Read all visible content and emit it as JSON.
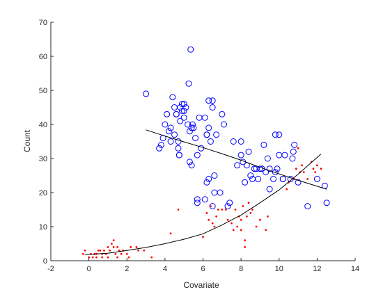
{
  "chart_data": {
    "type": "scatter",
    "title": "",
    "xlabel": "Covariate",
    "ylabel": "Count",
    "xlim": [
      -2,
      14
    ],
    "ylim": [
      0,
      70
    ],
    "xticks": [
      -2,
      0,
      2,
      4,
      6,
      8,
      10,
      12,
      14
    ],
    "yticks": [
      0,
      10,
      20,
      30,
      40,
      50,
      60,
      70
    ],
    "grid": false,
    "legend": "none",
    "series": [
      {
        "marker": "open-circle",
        "color": "#0000ff",
        "points": [
          [
            3.0,
            49
          ],
          [
            3.7,
            33
          ],
          [
            3.8,
            34
          ],
          [
            3.9,
            36
          ],
          [
            4.0,
            40
          ],
          [
            4.1,
            43
          ],
          [
            4.2,
            38
          ],
          [
            4.3,
            39
          ],
          [
            4.3,
            35
          ],
          [
            4.4,
            48
          ],
          [
            4.5,
            45
          ],
          [
            4.5,
            37
          ],
          [
            4.6,
            43
          ],
          [
            4.6,
            43
          ],
          [
            4.7,
            35
          ],
          [
            4.7,
            33
          ],
          [
            4.75,
            31
          ],
          [
            4.75,
            31
          ],
          [
            4.8,
            45
          ],
          [
            4.8,
            41
          ],
          [
            4.9,
            46
          ],
          [
            4.9,
            44
          ],
          [
            5.0,
            46
          ],
          [
            5.0,
            42
          ],
          [
            5.0,
            44
          ],
          [
            5.1,
            45
          ],
          [
            5.2,
            40
          ],
          [
            5.25,
            52
          ],
          [
            5.3,
            38
          ],
          [
            5.3,
            29
          ],
          [
            5.35,
            62
          ],
          [
            5.4,
            28
          ],
          [
            5.4,
            39
          ],
          [
            5.45,
            40
          ],
          [
            5.5,
            39
          ],
          [
            5.6,
            36
          ],
          [
            5.7,
            17
          ],
          [
            5.7,
            18
          ],
          [
            5.7,
            31
          ],
          [
            5.8,
            42
          ],
          [
            5.9,
            33
          ],
          [
            6.1,
            18
          ],
          [
            6.1,
            42
          ],
          [
            6.2,
            23
          ],
          [
            6.2,
            37
          ],
          [
            6.2,
            37
          ],
          [
            6.3,
            47
          ],
          [
            6.3,
            24
          ],
          [
            6.3,
            39
          ],
          [
            6.4,
            35
          ],
          [
            6.5,
            47
          ],
          [
            6.5,
            45
          ],
          [
            6.5,
            16
          ],
          [
            6.6,
            20
          ],
          [
            6.6,
            25
          ],
          [
            6.7,
            37
          ],
          [
            6.9,
            20
          ],
          [
            7.0,
            43
          ],
          [
            7.1,
            40
          ],
          [
            7.3,
            16
          ],
          [
            7.4,
            17
          ],
          [
            7.6,
            35
          ],
          [
            7.8,
            28
          ],
          [
            8.0,
            35
          ],
          [
            8.0,
            31
          ],
          [
            8.1,
            29
          ],
          [
            8.2,
            23
          ],
          [
            8.3,
            28
          ],
          [
            8.4,
            32
          ],
          [
            8.5,
            25
          ],
          [
            8.6,
            24
          ],
          [
            8.7,
            27
          ],
          [
            8.8,
            27
          ],
          [
            8.9,
            24
          ],
          [
            9.0,
            27
          ],
          [
            9.1,
            27
          ],
          [
            9.2,
            34
          ],
          [
            9.3,
            26
          ],
          [
            9.4,
            30
          ],
          [
            9.5,
            27
          ],
          [
            9.5,
            21
          ],
          [
            9.7,
            24
          ],
          [
            9.8,
            26
          ],
          [
            9.8,
            37
          ],
          [
            9.9,
            27
          ],
          [
            10.0,
            37
          ],
          [
            10.0,
            31
          ],
          [
            10.2,
            24
          ],
          [
            10.2,
            24
          ],
          [
            10.3,
            31
          ],
          [
            10.6,
            24
          ],
          [
            10.7,
            30
          ],
          [
            10.75,
            32
          ],
          [
            10.8,
            34
          ],
          [
            11.0,
            23
          ],
          [
            11.5,
            16
          ],
          [
            12.0,
            24
          ],
          [
            12.4,
            22
          ],
          [
            12.5,
            17
          ]
        ]
      },
      {
        "marker": "dot",
        "color": "#ff0000",
        "points": [
          [
            -0.3,
            2
          ],
          [
            -0.2,
            3
          ],
          [
            0.0,
            1
          ],
          [
            0.1,
            2
          ],
          [
            0.2,
            1
          ],
          [
            0.3,
            2
          ],
          [
            0.4,
            1
          ],
          [
            0.4,
            2
          ],
          [
            0.5,
            3
          ],
          [
            0.6,
            3
          ],
          [
            0.7,
            2
          ],
          [
            0.7,
            1
          ],
          [
            0.8,
            3
          ],
          [
            0.9,
            2
          ],
          [
            1.0,
            4
          ],
          [
            1.0,
            1
          ],
          [
            1.1,
            3
          ],
          [
            1.2,
            5
          ],
          [
            1.3,
            6
          ],
          [
            1.3,
            4
          ],
          [
            1.4,
            2
          ],
          [
            1.5,
            4
          ],
          [
            1.5,
            1
          ],
          [
            1.6,
            3
          ],
          [
            1.7,
            2
          ],
          [
            1.8,
            3
          ],
          [
            2.0,
            2
          ],
          [
            2.1,
            1
          ],
          [
            2.2,
            4
          ],
          [
            2.5,
            4
          ],
          [
            2.6,
            3
          ],
          [
            2.9,
            3
          ],
          [
            3.3,
            1
          ],
          [
            4.3,
            8
          ],
          [
            4.7,
            15
          ],
          [
            6.0,
            7
          ],
          [
            6.2,
            14
          ],
          [
            6.3,
            12
          ],
          [
            6.4,
            16
          ],
          [
            6.5,
            11
          ],
          [
            6.6,
            10
          ],
          [
            6.7,
            13
          ],
          [
            6.8,
            15
          ],
          [
            7.0,
            15
          ],
          [
            7.2,
            15
          ],
          [
            7.3,
            12
          ],
          [
            7.5,
            11
          ],
          [
            7.6,
            9
          ],
          [
            7.7,
            15
          ],
          [
            7.8,
            10
          ],
          [
            7.9,
            13
          ],
          [
            8.0,
            9
          ],
          [
            8.0,
            12
          ],
          [
            8.1,
            16
          ],
          [
            8.2,
            6
          ],
          [
            8.2,
            4
          ],
          [
            8.3,
            13
          ],
          [
            8.4,
            17
          ],
          [
            8.5,
            14
          ],
          [
            8.6,
            15
          ],
          [
            8.8,
            10
          ],
          [
            9.0,
            12
          ],
          [
            9.3,
            9
          ],
          [
            9.4,
            13
          ],
          [
            10.4,
            21
          ],
          [
            10.5,
            23
          ],
          [
            10.8,
            24
          ],
          [
            10.9,
            27
          ],
          [
            11.0,
            33
          ],
          [
            11.1,
            26
          ],
          [
            11.2,
            28
          ],
          [
            11.3,
            26
          ],
          [
            11.5,
            24
          ],
          [
            11.7,
            29
          ],
          [
            11.8,
            27
          ],
          [
            11.9,
            26
          ],
          [
            12.0,
            28
          ],
          [
            12.2,
            27
          ]
        ]
      }
    ],
    "fit_lines": [
      {
        "color": "#000000",
        "points": [
          [
            3.0,
            38.4
          ],
          [
            4.0,
            36.6
          ],
          [
            5.0,
            34.9
          ],
          [
            6.0,
            33.2
          ],
          [
            7.0,
            31.4
          ],
          [
            8.0,
            29.5
          ],
          [
            9.0,
            27.4
          ],
          [
            10.0,
            25.5
          ],
          [
            11.0,
            23.6
          ],
          [
            12.5,
            21.0
          ]
        ]
      },
      {
        "color": "#000000",
        "points": [
          [
            -0.2,
            1.8
          ],
          [
            1.0,
            2.2
          ],
          [
            2.0,
            3.0
          ],
          [
            3.0,
            3.9
          ],
          [
            4.0,
            5.0
          ],
          [
            5.0,
            6.3
          ],
          [
            6.0,
            7.9
          ],
          [
            7.0,
            10.5
          ],
          [
            8.0,
            13.4
          ],
          [
            9.0,
            17.0
          ],
          [
            10.0,
            20.8
          ],
          [
            11.0,
            25.4
          ],
          [
            12.2,
            31.3
          ]
        ]
      }
    ]
  }
}
